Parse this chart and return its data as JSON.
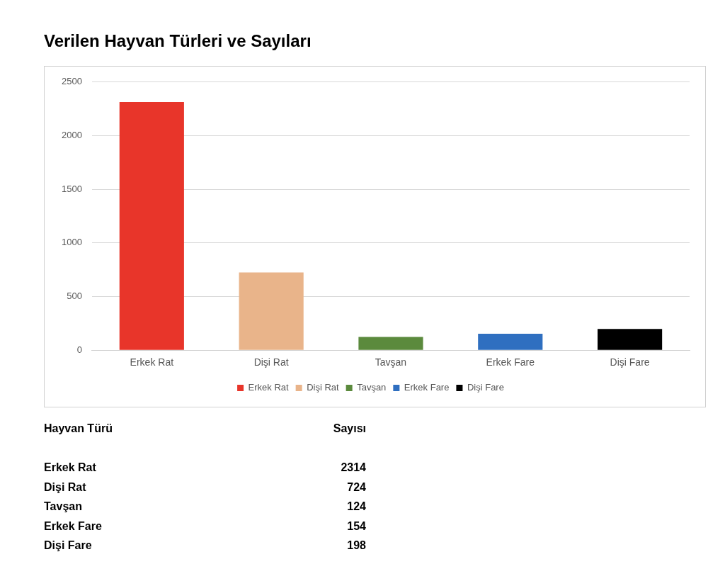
{
  "chart_data": [
    {
      "type": "bar",
      "title": "Verilen Hayvan Türleri ve Sayıları",
      "categories": [
        "Erkek Rat",
        "Dişi Rat",
        "Tavşan",
        "Erkek Fare",
        "Dişi Fare"
      ],
      "series": [
        {
          "name": "Erkek Rat",
          "color": "#e8352a",
          "values": [
            2314,
            null,
            null,
            null,
            null
          ]
        },
        {
          "name": "Dişi Rat",
          "color": "#e9b48a",
          "values": [
            null,
            724,
            null,
            null,
            null
          ]
        },
        {
          "name": "Tavşan",
          "color": "#5b8a3d",
          "values": [
            null,
            null,
            124,
            null,
            null
          ]
        },
        {
          "name": "Erkek Fare",
          "color": "#2f6fc0",
          "values": [
            null,
            null,
            null,
            154,
            null
          ]
        },
        {
          "name": "Dişi Fare",
          "color": "#000000",
          "values": [
            null,
            null,
            null,
            null,
            198
          ]
        }
      ],
      "ylim": [
        0,
        2500
      ],
      "yticks": [
        0,
        500,
        1000,
        1500,
        2000,
        2500
      ],
      "grid": "y",
      "legend": "bottom"
    },
    {
      "type": "other",
      "annotations": [
        "Hayvan Türü",
        "Sayısı"
      ],
      "categories": [
        "Erkek Rat",
        "Dişi Rat",
        "Tavşan",
        "Erkek Fare",
        "Dişi Fare"
      ],
      "values": [
        2314,
        724,
        124,
        154,
        198
      ],
      "data_labels": true
    }
  ]
}
